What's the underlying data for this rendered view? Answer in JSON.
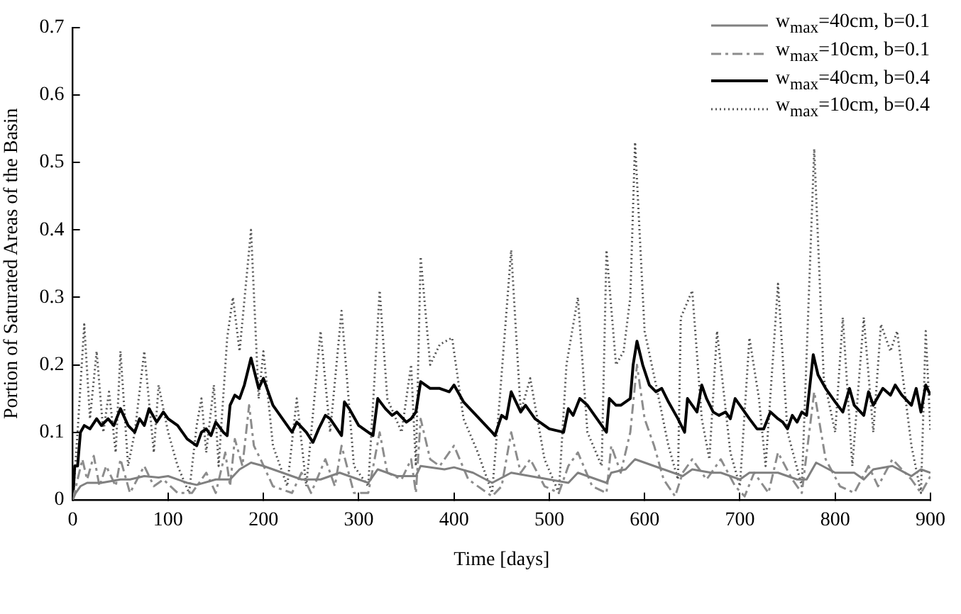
{
  "chart_data": {
    "type": "line",
    "xlabel": "Time [days]",
    "ylabel": "Portion of Saturated Areas of the Basin",
    "xlim": [
      0,
      900
    ],
    "xticks": [
      0,
      100,
      200,
      300,
      400,
      500,
      600,
      700,
      800,
      900
    ],
    "ylim": [
      0,
      0.7
    ],
    "yticks": [
      0,
      0.1,
      0.2,
      0.3,
      0.4,
      0.5,
      0.6,
      0.7
    ],
    "grid": false,
    "legend": "top right",
    "marker": "none",
    "series": [
      {
        "name": "w$_{max}$=40cm, b=0.1",
        "color": "#808080",
        "line_style": "solid",
        "x": [
          0,
          3,
          8,
          15,
          30,
          50,
          60,
          75,
          90,
          100,
          120,
          130,
          150,
          165,
          175,
          187,
          200,
          220,
          240,
          260,
          280,
          300,
          310,
          320,
          340,
          360,
          365,
          390,
          400,
          420,
          440,
          460,
          480,
          500,
          520,
          530,
          560,
          565,
          580,
          590,
          600,
          620,
          640,
          650,
          670,
          680,
          700,
          710,
          740,
          760,
          770,
          780,
          800,
          820,
          830,
          840,
          860,
          880,
          890,
          900
        ],
        "values": [
          0,
          0.01,
          0.02,
          0.025,
          0.025,
          0.03,
          0.03,
          0.035,
          0.033,
          0.035,
          0.025,
          0.022,
          0.03,
          0.03,
          0.045,
          0.055,
          0.05,
          0.04,
          0.03,
          0.03,
          0.04,
          0.03,
          0.025,
          0.045,
          0.035,
          0.035,
          0.05,
          0.045,
          0.048,
          0.04,
          0.025,
          0.04,
          0.035,
          0.03,
          0.025,
          0.04,
          0.025,
          0.04,
          0.045,
          0.06,
          0.055,
          0.045,
          0.035,
          0.045,
          0.04,
          0.04,
          0.03,
          0.04,
          0.04,
          0.03,
          0.03,
          0.055,
          0.04,
          0.04,
          0.03,
          0.045,
          0.05,
          0.035,
          0.045,
          0.04
        ]
      },
      {
        "name": "w$_{max}$=10cm, b=0.1",
        "color": "#8c8c8c",
        "line_style": "dashed",
        "x": [
          0,
          5,
          10,
          15,
          22,
          28,
          35,
          45,
          50,
          60,
          75,
          85,
          95,
          110,
          125,
          140,
          150,
          160,
          165,
          170,
          178,
          185,
          190,
          197,
          210,
          230,
          240,
          250,
          265,
          275,
          282,
          295,
          310,
          322,
          330,
          345,
          355,
          360,
          365,
          375,
          385,
          400,
          415,
          440,
          450,
          460,
          470,
          480,
          495,
          510,
          520,
          530,
          545,
          560,
          565,
          575,
          585,
          592,
          600,
          610,
          620,
          632,
          640,
          650,
          665,
          680,
          695,
          705,
          715,
          730,
          740,
          755,
          765,
          778,
          790,
          805,
          820,
          835,
          845,
          860,
          880,
          890,
          900
        ],
        "values": [
          0,
          0.03,
          0.06,
          0.03,
          0.065,
          0.02,
          0.05,
          0.02,
          0.06,
          0.01,
          0.05,
          0.02,
          0.03,
          0.01,
          0.01,
          0.04,
          0.01,
          0.07,
          0.02,
          0.09,
          0.05,
          0.14,
          0.08,
          0.06,
          0.02,
          0.01,
          0.04,
          0.01,
          0.06,
          0.02,
          0.08,
          0.01,
          0.01,
          0.1,
          0.04,
          0.03,
          0.06,
          0.01,
          0.12,
          0.06,
          0.05,
          0.08,
          0.03,
          0.005,
          0.02,
          0.1,
          0.04,
          0.06,
          0.02,
          0.01,
          0.05,
          0.07,
          0.02,
          0.01,
          0.08,
          0.04,
          0.1,
          0.2,
          0.12,
          0.08,
          0.03,
          0.005,
          0.04,
          0.06,
          0.03,
          0.06,
          0.02,
          0.005,
          0.04,
          0.01,
          0.07,
          0.03,
          0.01,
          0.16,
          0.06,
          0.02,
          0.01,
          0.05,
          0.02,
          0.06,
          0.03,
          0.01,
          0.035
        ]
      },
      {
        "name": "w$_{max}$=40cm, b=0.4",
        "color": "#000000",
        "line_style": "solid",
        "x": [
          0,
          2,
          5,
          8,
          12,
          18,
          25,
          30,
          37,
          43,
          50,
          58,
          65,
          70,
          75,
          80,
          88,
          95,
          100,
          110,
          120,
          130,
          135,
          140,
          145,
          150,
          158,
          162,
          165,
          170,
          175,
          180,
          187,
          195,
          200,
          210,
          220,
          230,
          235,
          245,
          252,
          258,
          265,
          270,
          282,
          285,
          290,
          300,
          310,
          315,
          320,
          328,
          335,
          340,
          350,
          355,
          360,
          365,
          375,
          385,
          395,
          400,
          410,
          420,
          440,
          443,
          450,
          455,
          460,
          470,
          475,
          485,
          500,
          515,
          520,
          525,
          532,
          540,
          550,
          560,
          563,
          570,
          575,
          580,
          585,
          588,
          592,
          598,
          605,
          612,
          618,
          625,
          635,
          642,
          645,
          650,
          655,
          660,
          665,
          672,
          678,
          685,
          690,
          695,
          700,
          710,
          718,
          725,
          732,
          740,
          745,
          750,
          755,
          760,
          765,
          770,
          777,
          782,
          790,
          800,
          808,
          815,
          820,
          830,
          835,
          840,
          850,
          858,
          863,
          870,
          880,
          885,
          890,
          895,
          900
        ],
        "values": [
          0,
          0.05,
          0.05,
          0.1,
          0.11,
          0.105,
          0.12,
          0.11,
          0.12,
          0.11,
          0.135,
          0.11,
          0.1,
          0.12,
          0.11,
          0.135,
          0.115,
          0.13,
          0.12,
          0.11,
          0.09,
          0.08,
          0.1,
          0.105,
          0.095,
          0.115,
          0.1,
          0.095,
          0.14,
          0.155,
          0.15,
          0.17,
          0.21,
          0.165,
          0.18,
          0.14,
          0.12,
          0.1,
          0.115,
          0.1,
          0.085,
          0.105,
          0.125,
          0.12,
          0.095,
          0.145,
          0.135,
          0.11,
          0.1,
          0.095,
          0.15,
          0.135,
          0.125,
          0.13,
          0.115,
          0.12,
          0.13,
          0.175,
          0.165,
          0.165,
          0.16,
          0.17,
          0.145,
          0.13,
          0.1,
          0.095,
          0.125,
          0.12,
          0.16,
          0.13,
          0.14,
          0.12,
          0.105,
          0.1,
          0.135,
          0.125,
          0.15,
          0.14,
          0.12,
          0.1,
          0.15,
          0.14,
          0.14,
          0.145,
          0.15,
          0.2,
          0.235,
          0.2,
          0.17,
          0.16,
          0.165,
          0.145,
          0.12,
          0.1,
          0.15,
          0.14,
          0.13,
          0.17,
          0.15,
          0.13,
          0.125,
          0.13,
          0.12,
          0.15,
          0.14,
          0.12,
          0.105,
          0.105,
          0.13,
          0.12,
          0.115,
          0.105,
          0.125,
          0.115,
          0.13,
          0.125,
          0.215,
          0.185,
          0.165,
          0.145,
          0.13,
          0.165,
          0.14,
          0.125,
          0.16,
          0.14,
          0.165,
          0.155,
          0.17,
          0.155,
          0.14,
          0.165,
          0.13,
          0.17,
          0.155
        ]
      },
      {
        "name": "w$_{max}$=10cm, b=0.4",
        "color": "#555555",
        "line_style": "dotted",
        "x": [
          0,
          5,
          12,
          18,
          25,
          32,
          38,
          45,
          50,
          58,
          65,
          75,
          85,
          90,
          100,
          110,
          122,
          130,
          135,
          140,
          148,
          153,
          162,
          168,
          175,
          187,
          195,
          200,
          210,
          225,
          235,
          245,
          260,
          270,
          282,
          295,
          310,
          322,
          330,
          345,
          355,
          360,
          365,
          375,
          385,
          398,
          410,
          425,
          440,
          448,
          460,
          470,
          480,
          495,
          510,
          518,
          530,
          540,
          555,
          560,
          570,
          578,
          585,
          590,
          600,
          612,
          625,
          635,
          638,
          650,
          660,
          668,
          676,
          690,
          700,
          710,
          720,
          727,
          740,
          750,
          765,
          778,
          788,
          800,
          808,
          818,
          830,
          840,
          848,
          858,
          865,
          880,
          890,
          895,
          900
        ],
        "values": [
          0,
          0.1,
          0.26,
          0.12,
          0.22,
          0.1,
          0.16,
          0.07,
          0.22,
          0.05,
          0.1,
          0.22,
          0.07,
          0.17,
          0.1,
          0.05,
          0.01,
          0.11,
          0.15,
          0.07,
          0.17,
          0.05,
          0.24,
          0.3,
          0.22,
          0.4,
          0.15,
          0.22,
          0.08,
          0.02,
          0.15,
          0.02,
          0.25,
          0.1,
          0.28,
          0.05,
          0.02,
          0.31,
          0.15,
          0.1,
          0.2,
          0.05,
          0.36,
          0.2,
          0.23,
          0.24,
          0.12,
          0.07,
          0.01,
          0.15,
          0.37,
          0.13,
          0.18,
          0.06,
          0.01,
          0.2,
          0.3,
          0.1,
          0.05,
          0.37,
          0.2,
          0.22,
          0.3,
          0.53,
          0.25,
          0.17,
          0.08,
          0.03,
          0.27,
          0.31,
          0.12,
          0.06,
          0.25,
          0.07,
          0.02,
          0.24,
          0.15,
          0.05,
          0.32,
          0.1,
          0.02,
          0.52,
          0.18,
          0.1,
          0.27,
          0.05,
          0.27,
          0.1,
          0.26,
          0.22,
          0.25,
          0.08,
          0.01,
          0.25,
          0.1
        ]
      }
    ]
  }
}
